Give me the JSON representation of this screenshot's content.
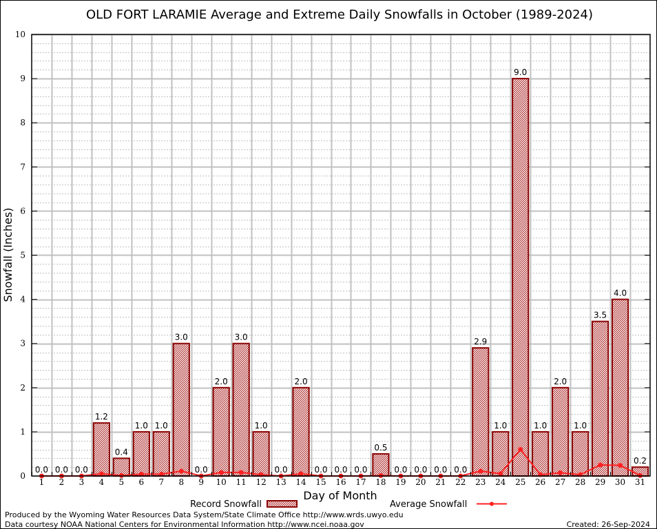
{
  "chart_data": {
    "type": "bar",
    "title": "OLD FORT LARAMIE Average and Extreme Daily Snowfalls in October (1989-2024)",
    "xlabel": "Day of Month",
    "ylabel": "Snowfall (Inches)",
    "ylim": [
      0,
      10
    ],
    "yticks": [
      "0",
      "1",
      "2",
      "3",
      "4",
      "5",
      "6",
      "7",
      "8",
      "9",
      "10"
    ],
    "categories": [
      "1",
      "2",
      "3",
      "4",
      "5",
      "6",
      "7",
      "8",
      "9",
      "10",
      "11",
      "12",
      "13",
      "14",
      "15",
      "16",
      "17",
      "18",
      "19",
      "20",
      "21",
      "22",
      "23",
      "24",
      "25",
      "26",
      "27",
      "28",
      "29",
      "30",
      "31"
    ],
    "series": [
      {
        "name": "Record Snowfall",
        "type": "bar",
        "values": [
          0.0,
          0.0,
          0.0,
          1.2,
          0.4,
          1.0,
          1.0,
          3.0,
          0.0,
          2.0,
          3.0,
          1.0,
          0.0,
          2.0,
          0.0,
          0.0,
          0.0,
          0.5,
          0.0,
          0.0,
          0.0,
          0.0,
          2.9,
          1.0,
          9.0,
          1.0,
          2.0,
          1.0,
          3.5,
          4.0,
          0.2
        ],
        "labels": [
          "0.0",
          "0.0",
          "0.0",
          "1.2",
          "0.4",
          "1.0",
          "1.0",
          "3.0",
          "0.0",
          "2.0",
          "3.0",
          "1.0",
          "0.0",
          "2.0",
          "0.0",
          "0.0",
          "0.0",
          "0.5",
          "0.0",
          "0.0",
          "0.0",
          "0.0",
          "2.9",
          "1.0",
          "9.0",
          "1.0",
          "2.0",
          "1.0",
          "3.5",
          "4.0",
          "0.2"
        ]
      },
      {
        "name": "Average Snowfall",
        "type": "line",
        "values": [
          0.0,
          0.0,
          0.0,
          0.05,
          0.01,
          0.04,
          0.04,
          0.11,
          0.0,
          0.08,
          0.08,
          0.03,
          0.0,
          0.05,
          0.0,
          0.0,
          0.0,
          0.01,
          0.0,
          0.0,
          0.0,
          0.0,
          0.11,
          0.05,
          0.6,
          0.03,
          0.07,
          0.03,
          0.25,
          0.24,
          0.01
        ]
      }
    ],
    "legend": "bottom-center",
    "grid": true,
    "colors": {
      "bar_fill": "#c85050",
      "bar_edge": "#8b0000",
      "line": "#ff2020",
      "grid": "#c0c0c0"
    }
  },
  "footer": {
    "produced_by": "Produced by the Wyoming Water Resources Data System/State Climate Office http://www.wrds.uwyo.edu",
    "data_courtesy": "Data courtesy NOAA National Centers for Environmental Information http://www.ncei.noaa.gov",
    "created": "Created: 26-Sep-2024"
  }
}
